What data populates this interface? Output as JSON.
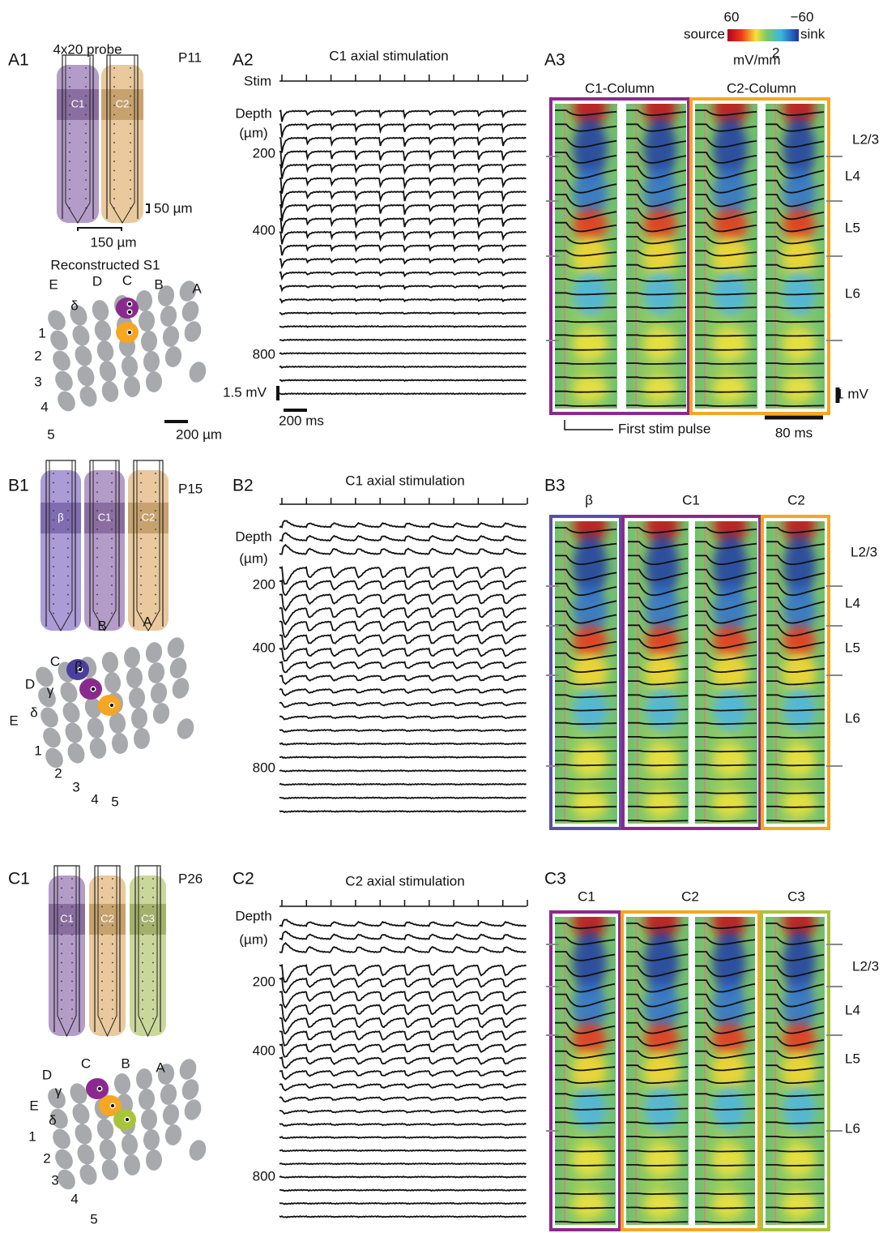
{
  "colorbar": {
    "max": "60",
    "min": "−60",
    "source": "source",
    "sink": "sink",
    "unit": "mV/mm",
    "unit_sup": "2"
  },
  "panels": [
    {
      "labels": [
        "A1",
        "A2",
        "A3"
      ],
      "age": "P11",
      "probe": "4x20 probe",
      "probe_columns": [
        "C1",
        "C2"
      ],
      "scale_depth": "50 µm",
      "scale_spacing": "150 µm",
      "map_title": "Reconstructed S1",
      "map_arcs": [
        "E",
        "D",
        "C",
        "B",
        "A"
      ],
      "map_greek": [
        "δ"
      ],
      "map_rows": [
        "1",
        "2",
        "3",
        "4",
        "5"
      ],
      "map_scale": "200 µm",
      "stim_title": "C1 axial stimulation",
      "stim_label": "Stim",
      "depth_label": [
        "Depth",
        "(µm)"
      ],
      "depth_ticks": [
        "200",
        "400",
        "800"
      ],
      "lfp_scale_mv": "1.5 mV",
      "lfp_scale_ms": "200 ms",
      "csd_columns": [
        "C1-Column",
        "C2-Column"
      ],
      "layers": [
        "L2/3",
        "L4",
        "L5",
        "L6"
      ],
      "csd_scale_mv": "1 mV",
      "first_stim": "First stim pulse",
      "csd_scale_ms": "80 ms"
    },
    {
      "labels": [
        "B1",
        "B2",
        "B3"
      ],
      "age": "P15",
      "probe_columns": [
        "β",
        "C1",
        "C2"
      ],
      "map_arcs": [
        "C",
        "B",
        "A",
        "D",
        "E"
      ],
      "map_greek": [
        "β",
        "γ",
        "δ"
      ],
      "map_rows": [
        "1",
        "2",
        "3",
        "4",
        "5"
      ],
      "stim_title": "C1 axial stimulation",
      "depth_label": [
        "Depth",
        "(µm)"
      ],
      "depth_ticks": [
        "200",
        "400",
        "800"
      ],
      "csd_columns": [
        "β",
        "C1",
        "C2"
      ],
      "layers": [
        "L2/3",
        "L4",
        "L5",
        "L6"
      ]
    },
    {
      "labels": [
        "C1",
        "C2",
        "C3"
      ],
      "age": "P26",
      "probe_columns": [
        "C1",
        "C2",
        "C3"
      ],
      "map_arcs": [
        "D",
        "C",
        "B",
        "A",
        "E"
      ],
      "map_greek": [
        "γ",
        "δ"
      ],
      "map_rows": [
        "1",
        "2",
        "3",
        "4",
        "5"
      ],
      "stim_title": "C2 axial stimulation",
      "depth_label": [
        "Depth",
        "(µm)"
      ],
      "depth_ticks": [
        "200",
        "400",
        "800"
      ],
      "csd_columns": [
        "C1",
        "C2",
        "C3"
      ],
      "layers": [
        "L2/3",
        "L4",
        "L5",
        "L6"
      ]
    }
  ]
}
